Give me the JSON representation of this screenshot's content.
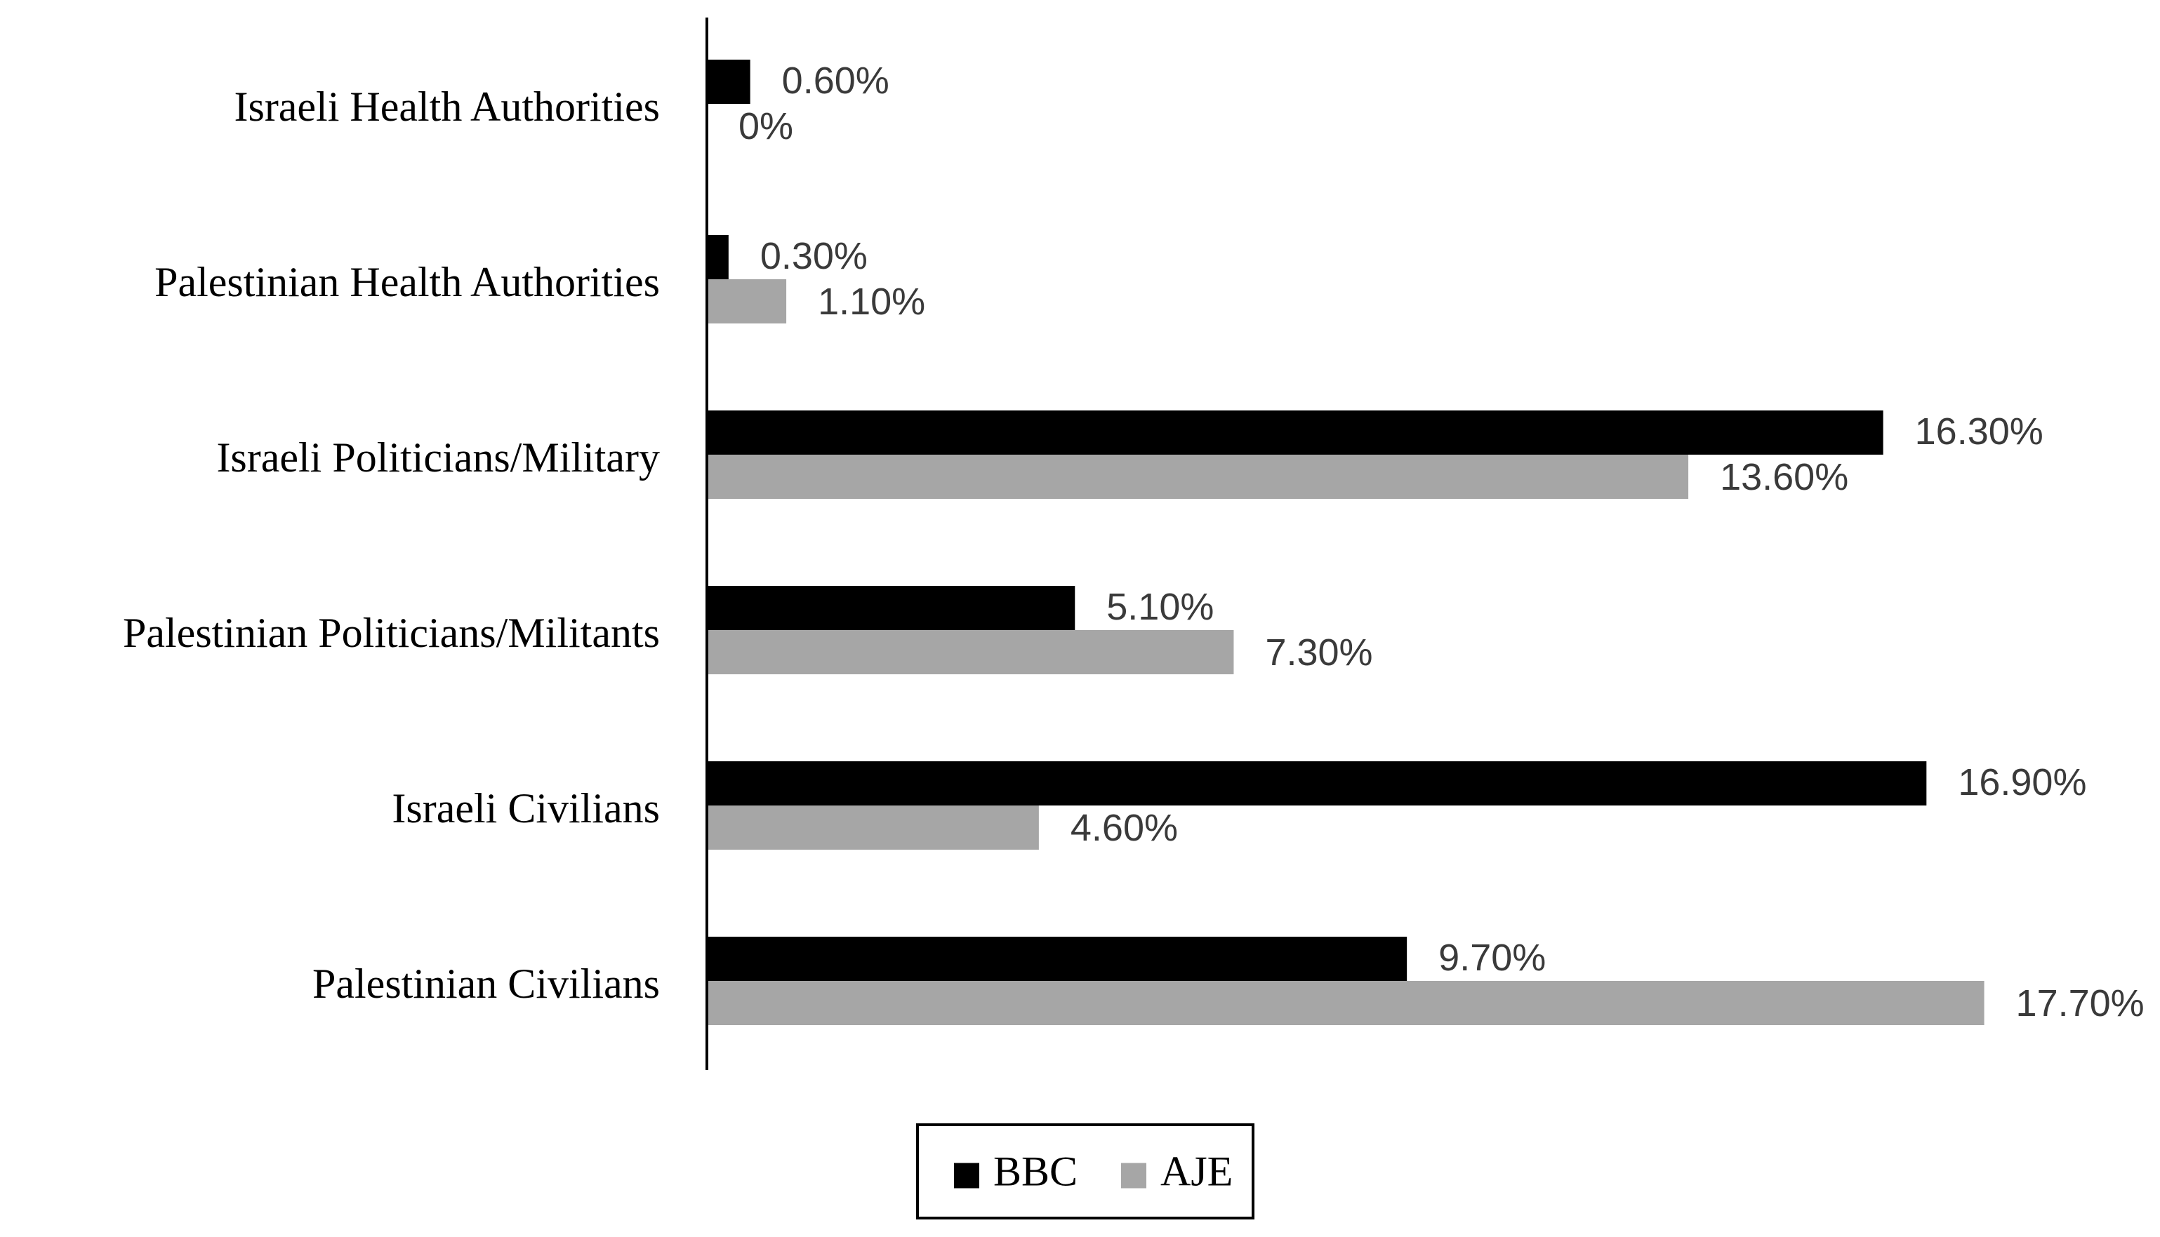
{
  "chart_data": {
    "type": "bar",
    "orientation": "horizontal",
    "categories": [
      "Israeli Health Authorities",
      "Palestinian Health Authorities",
      "Israeli Politicians/Military",
      "Palestinian Politicians/Militants",
      "Israeli Civilians",
      "Palestinian Civilians"
    ],
    "series": [
      {
        "name": "BBC",
        "color": "#000000",
        "values": [
          0.6,
          0.3,
          16.3,
          5.1,
          16.9,
          9.7
        ],
        "labels": [
          "0.60%",
          "0.30%",
          "16.30%",
          "5.10%",
          "16.90%",
          "9.70%"
        ]
      },
      {
        "name": "AJE",
        "color": "#a6a6a6",
        "values": [
          0,
          1.1,
          13.6,
          7.3,
          4.6,
          17.7
        ],
        "labels": [
          "0%",
          "1.10%",
          "13.60%",
          "7.30%",
          "4.60%",
          "17.70%"
        ]
      }
    ],
    "xlim": [
      0,
      20
    ],
    "grid": false,
    "legend_position": "bottom-center",
    "title": "",
    "xlabel": "",
    "ylabel": ""
  }
}
